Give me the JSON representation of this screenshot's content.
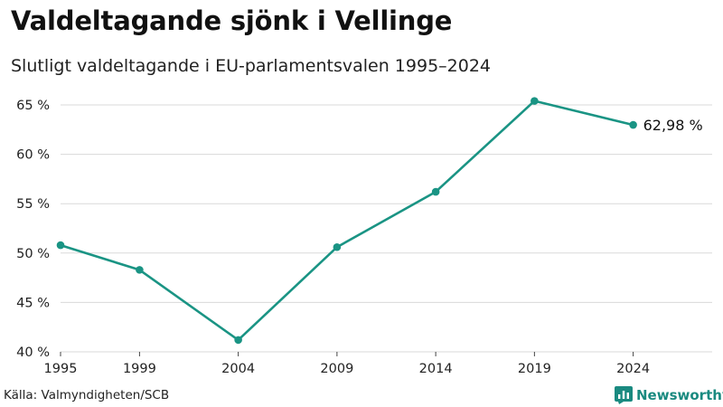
{
  "header": {
    "title": "Valdeltagande sjönk i Vellinge",
    "subtitle": "Slutligt valdeltagande i EU-parlamentsvalen 1995–2024"
  },
  "footer": {
    "source": "Källa: Valmyndigheten/SCB",
    "brand": "Newsworthy"
  },
  "colors": {
    "line": "#1a9484",
    "grid": "#d9d9d9",
    "brand": "#1a8a80"
  },
  "chart_data": {
    "type": "line",
    "title": "Valdeltagande sjönk i Vellinge",
    "subtitle": "Slutligt valdeltagande i EU-parlamentsvalen 1995–2024",
    "xlabel": "",
    "ylabel": "",
    "x": [
      1995,
      1999,
      2004,
      2009,
      2014,
      2019,
      2024
    ],
    "x_tick_labels": [
      "1995",
      "1999",
      "2004",
      "2009",
      "2014",
      "2019",
      "2024"
    ],
    "xlim": [
      1995,
      2028
    ],
    "y": [
      50.8,
      48.3,
      41.2,
      50.6,
      56.2,
      65.4,
      62.98
    ],
    "ylim": [
      40,
      65
    ],
    "y_ticks": [
      40,
      45,
      50,
      55,
      60,
      65
    ],
    "y_tick_labels": [
      "40 %",
      "45 %",
      "50 %",
      "55 %",
      "60 %",
      "65 %"
    ],
    "grid": true,
    "annotations": [
      {
        "index": 6,
        "text": "62,98 %"
      }
    ],
    "source": "Källa: Valmyndigheten/SCB"
  }
}
